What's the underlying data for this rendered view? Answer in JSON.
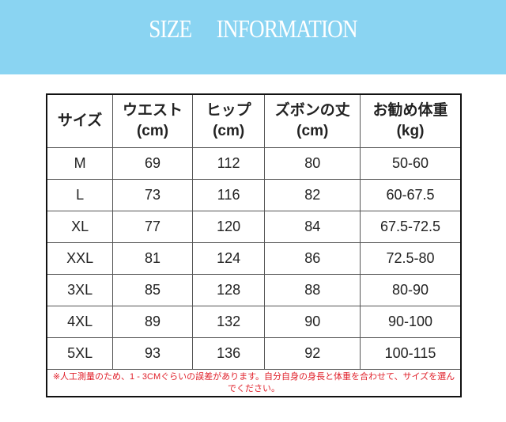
{
  "banner": {
    "title": "SIZE INFORMATION",
    "color": "#8ad4f2"
  },
  "table": {
    "headers": [
      {
        "label": "サイズ",
        "unit": ""
      },
      {
        "label": "ウエスト",
        "unit": "(cm)"
      },
      {
        "label": "ヒップ",
        "unit": "(cm)"
      },
      {
        "label": "ズボンの丈",
        "unit": "(cm)"
      },
      {
        "label": "お勧め体重",
        "unit": "(kg)"
      }
    ],
    "rows": [
      [
        "M",
        "69",
        "112",
        "80",
        "50-60"
      ],
      [
        "L",
        "73",
        "116",
        "82",
        "60-67.5"
      ],
      [
        "XL",
        "77",
        "120",
        "84",
        "67.5-72.5"
      ],
      [
        "XXL",
        "81",
        "124",
        "86",
        "72.5-80"
      ],
      [
        "3XL",
        "85",
        "128",
        "88",
        "80-90"
      ],
      [
        "4XL",
        "89",
        "132",
        "90",
        "90-100"
      ],
      [
        "5XL",
        "93",
        "136",
        "92",
        "100-115"
      ]
    ],
    "note": "※人工測量のため、1 - 3CMぐらいの誤差があります。自分自身の身長と体重を合わせて、サイズを選んでください。"
  }
}
